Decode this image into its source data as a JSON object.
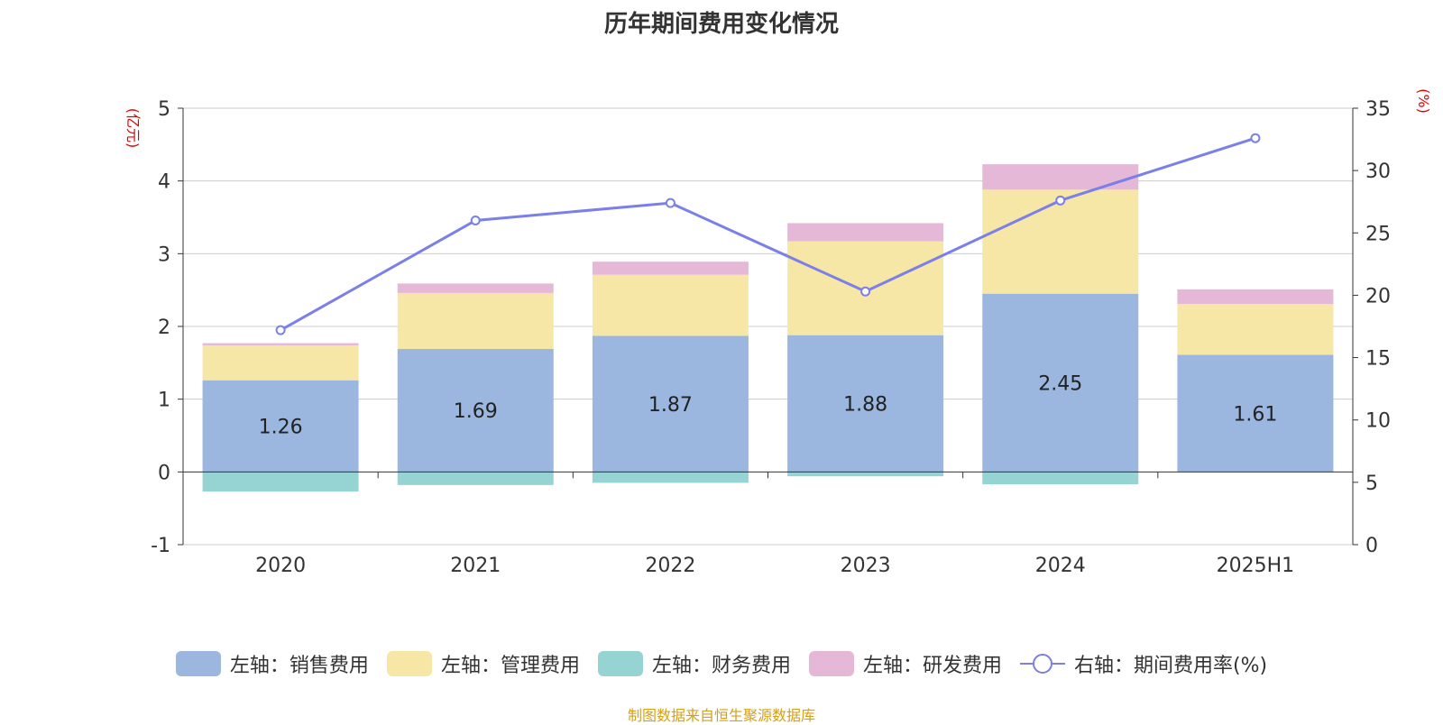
{
  "chart_data": {
    "type": "bar",
    "title": "历年期间费用变化情况",
    "categories": [
      "2020",
      "2021",
      "2022",
      "2023",
      "2024",
      "2025H1"
    ],
    "left_axis": {
      "unit_label": "(亿元)",
      "ylim": [
        -1,
        5
      ],
      "ticks": [
        "-1",
        "0",
        "1",
        "2",
        "3",
        "4",
        "5"
      ]
    },
    "right_axis": {
      "unit_label": "(%)",
      "ylim": [
        0,
        35
      ],
      "ticks": [
        "0",
        "5",
        "10",
        "15",
        "20",
        "25",
        "30",
        "35"
      ]
    },
    "series": [
      {
        "name": "左轴：销售费用",
        "kind": "bar",
        "axis": "left",
        "color": "#9bb7e0",
        "values": [
          1.26,
          1.69,
          1.87,
          1.88,
          2.45,
          1.61
        ],
        "data_labels": [
          "1.26",
          "1.69",
          "1.87",
          "1.88",
          "2.45",
          "1.61"
        ]
      },
      {
        "name": "左轴：管理费用",
        "kind": "bar",
        "axis": "left",
        "color": "#f7e7a6",
        "values": [
          0.48,
          0.77,
          0.84,
          1.29,
          1.43,
          0.7
        ]
      },
      {
        "name": "左轴：财务费用",
        "kind": "bar",
        "axis": "left",
        "color": "#96d4d4",
        "values": [
          -0.27,
          -0.18,
          -0.15,
          -0.06,
          -0.17,
          0.0
        ]
      },
      {
        "name": "左轴：研发费用",
        "kind": "bar",
        "axis": "left",
        "color": "#e6b8d8",
        "values": [
          0.03,
          0.13,
          0.18,
          0.25,
          0.35,
          0.2
        ]
      },
      {
        "name": "右轴：期间费用率(%)",
        "kind": "line",
        "axis": "right",
        "color": "#7b7fe8",
        "values": [
          17.2,
          26.0,
          27.4,
          20.3,
          27.6,
          32.6
        ]
      }
    ],
    "grid": true,
    "legend_position": "bottom"
  },
  "source_note": "制图数据来自恒生聚源数据库"
}
